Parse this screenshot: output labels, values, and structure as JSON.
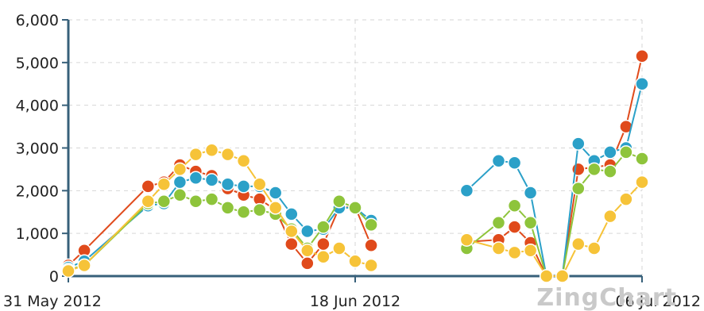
{
  "chart_data": {
    "type": "line",
    "title": "",
    "xlabel": "",
    "ylabel": "",
    "x_tick_labels": [
      "31 May 2012",
      "18 Jun 2012",
      "06 Jul 2012"
    ],
    "x_tick_days": [
      0,
      18,
      36
    ],
    "x_start_date": "2012-05-31",
    "y_ticks": [
      "0",
      "1,000",
      "2,000",
      "3,000",
      "4,000",
      "5,000",
      "6,000"
    ],
    "ylim": [
      0,
      6000
    ],
    "xlim_days": [
      0,
      36
    ],
    "grid": true,
    "x": [
      "2012-05-31",
      "2012-06-01",
      "2012-06-05",
      "2012-06-06",
      "2012-06-07",
      "2012-06-08",
      "2012-06-09",
      "2012-06-10",
      "2012-06-11",
      "2012-06-12",
      "2012-06-13",
      "2012-06-14",
      "2012-06-15",
      "2012-06-16",
      "2012-06-17",
      "2012-06-18",
      "2012-06-19",
      "2012-06-20",
      "2012-06-25",
      "2012-06-27",
      "2012-06-28",
      "2012-06-29",
      "2012-06-30",
      "2012-07-01",
      "2012-07-02",
      "2012-07-03",
      "2012-07-04",
      "2012-07-05",
      "2012-07-06"
    ],
    "series": [
      {
        "color": "#e04a1b",
        "values": [
          250,
          600,
          2100,
          2200,
          2600,
          2450,
          2350,
          2050,
          1900,
          1800,
          1550,
          750,
          300,
          750,
          1600,
          1620,
          720,
          null,
          800,
          850,
          1150,
          780,
          0,
          0,
          2500,
          2550,
          2600,
          3500,
          5150
        ]
      },
      {
        "color": "#2ba0c8",
        "values": [
          200,
          350,
          1650,
          1700,
          2200,
          2300,
          2250,
          2150,
          2100,
          2100,
          1950,
          1450,
          1050,
          1100,
          1600,
          1600,
          1300,
          null,
          2000,
          2700,
          2650,
          1950,
          0,
          0,
          3100,
          2700,
          2900,
          3000,
          4500
        ]
      },
      {
        "color": "#8ec43b",
        "values": [
          150,
          250,
          1700,
          1750,
          1900,
          1750,
          1800,
          1600,
          1500,
          1550,
          1450,
          1100,
          650,
          1150,
          1750,
          1600,
          1200,
          null,
          650,
          1250,
          1650,
          1250,
          0,
          0,
          2050,
          2500,
          2450,
          2900,
          2750
        ]
      },
      {
        "color": "#f6c338",
        "values": [
          120,
          250,
          1750,
          2150,
          2500,
          2850,
          2950,
          2850,
          2700,
          2150,
          1600,
          1050,
          600,
          450,
          650,
          350,
          250,
          null,
          850,
          650,
          550,
          600,
          0,
          0,
          750,
          650,
          1400,
          1800,
          2200
        ]
      }
    ]
  },
  "watermark": "ZingChart"
}
